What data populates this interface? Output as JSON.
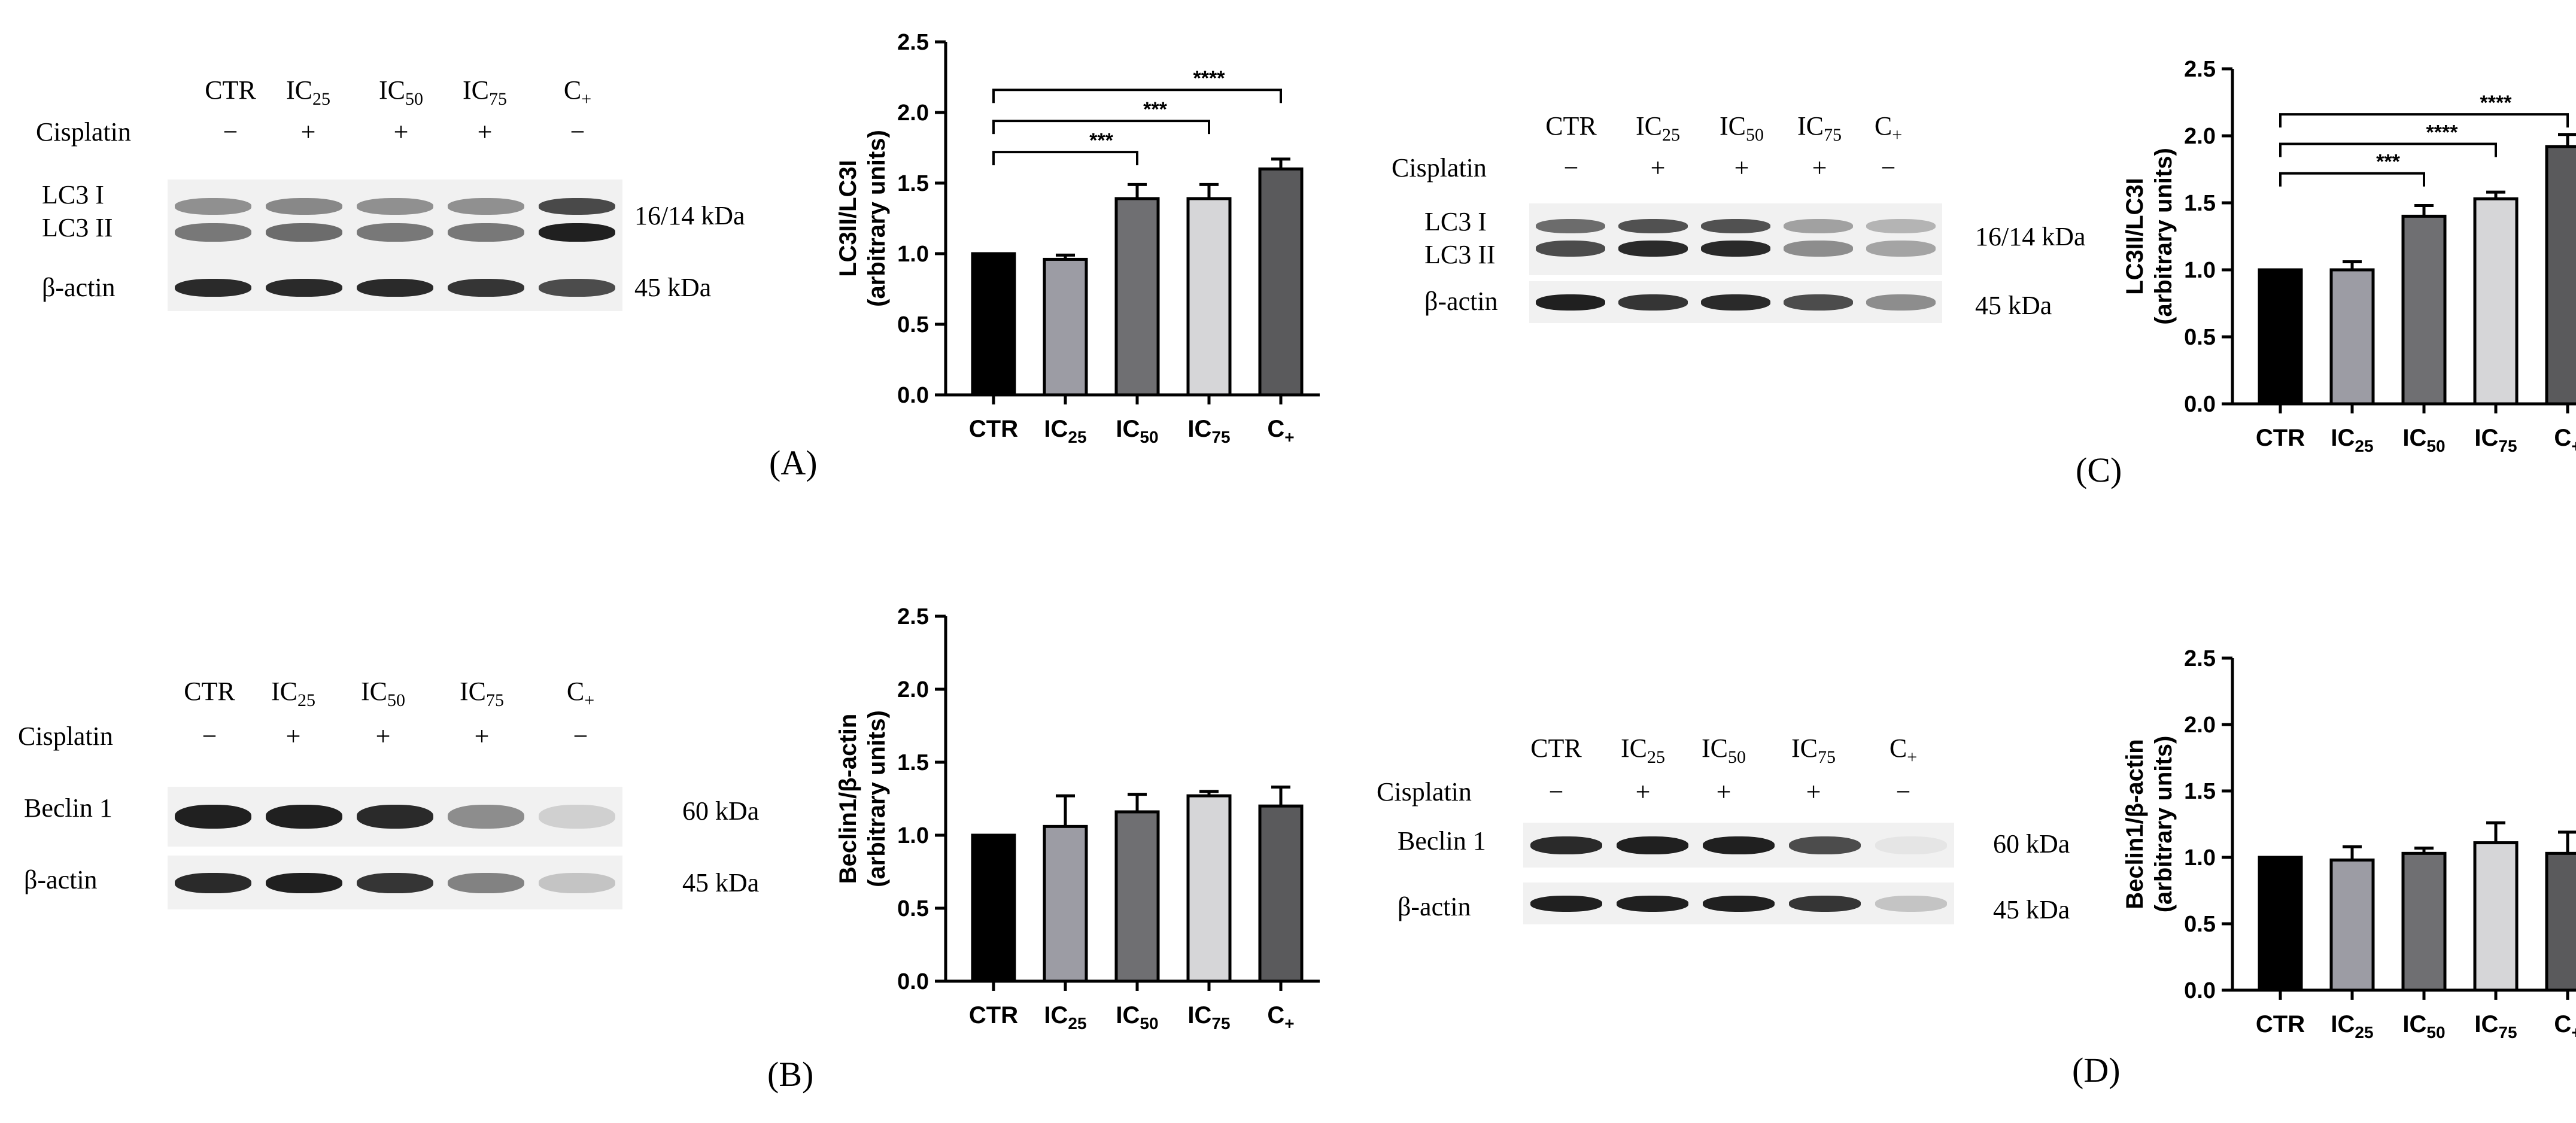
{
  "lanes": [
    "CTR",
    "IC25",
    "IC50",
    "IC75",
    "C+"
  ],
  "lane_labels": [
    {
      "main": "CTR",
      "sub": ""
    },
    {
      "main": "IC",
      "sub": "25"
    },
    {
      "main": "IC",
      "sub": "50"
    },
    {
      "main": "IC",
      "sub": "75"
    },
    {
      "main": "C",
      "sub": "+"
    }
  ],
  "treatment_label": "Cisplatin",
  "treatment_signs": [
    "−",
    "+",
    "+",
    "+",
    "−"
  ],
  "panels": {
    "A": {
      "letter": "(A)",
      "bands": {
        "top": "LC3 I",
        "bottom": "LC3 II",
        "loading": "β-actin"
      },
      "kda": {
        "target": "16/14 kDa",
        "loading": "45 kDa"
      },
      "intensity_target": [
        0.55,
        0.6,
        0.55,
        0.55,
        0.95
      ],
      "intensity_loading": [
        0.9,
        0.9,
        0.9,
        0.85,
        0.75
      ]
    },
    "B": {
      "letter": "(B)",
      "bands": {
        "top": "Beclin 1",
        "loading": "β-actin"
      },
      "kda": {
        "target": "60 kDa",
        "loading": "45 kDa"
      },
      "intensity_target": [
        0.95,
        0.95,
        0.9,
        0.45,
        0.15
      ],
      "intensity_loading": [
        0.9,
        0.95,
        0.85,
        0.5,
        0.2
      ]
    },
    "C": {
      "letter": "(C)",
      "bands": {
        "top": "LC3 I",
        "bottom": "LC3 II",
        "loading": "β-actin"
      },
      "kda": {
        "target": "16/14 kDa",
        "loading": "45 kDa"
      },
      "intensity_target": [
        0.75,
        0.9,
        0.9,
        0.45,
        0.35
      ],
      "intensity_loading": [
        0.95,
        0.85,
        0.9,
        0.75,
        0.45
      ]
    },
    "D": {
      "letter": "(D)",
      "bands": {
        "top": "Beclin 1",
        "loading": "β-actin"
      },
      "kda": {
        "target": "60 kDa",
        "loading": "45 kDa"
      },
      "intensity_target": [
        0.9,
        0.95,
        0.95,
        0.75,
        0.05
      ],
      "intensity_loading": [
        0.95,
        0.95,
        0.95,
        0.85,
        0.2
      ]
    }
  },
  "chart_data": [
    {
      "panel": "A",
      "type": "bar",
      "categories": [
        "CTR",
        "IC25",
        "IC50",
        "IC75",
        "C+"
      ],
      "values": [
        1.0,
        0.96,
        1.39,
        1.39,
        1.6
      ],
      "errors": [
        0.0,
        0.03,
        0.1,
        0.1,
        0.07
      ],
      "ylabel_line1": "LC3II/LC3I",
      "ylabel_line2": "(arbitrary units)",
      "ylim": [
        0,
        2.5
      ],
      "yticks": [
        "0.0",
        "0.5",
        "1.0",
        "1.5",
        "2.0",
        "2.5"
      ],
      "significance": [
        {
          "from": "CTR",
          "to": "IC50",
          "label": "***"
        },
        {
          "from": "CTR",
          "to": "IC75",
          "label": "***"
        },
        {
          "from": "CTR",
          "to": "C+",
          "label": "****"
        }
      ],
      "colors": [
        "#000000",
        "#9c9ca4",
        "#6f6f72",
        "#d6d6d8",
        "#5a5a5c"
      ]
    },
    {
      "panel": "B",
      "type": "bar",
      "categories": [
        "CTR",
        "IC25",
        "IC50",
        "IC75",
        "C+"
      ],
      "values": [
        1.0,
        1.06,
        1.16,
        1.27,
        1.2
      ],
      "errors": [
        0.0,
        0.21,
        0.12,
        0.03,
        0.13
      ],
      "ylabel_line1": "Beclin1/β-actin",
      "ylabel_line2": "(arbitrary units)",
      "ylim": [
        0,
        2.5
      ],
      "yticks": [
        "0.0",
        "0.5",
        "1.0",
        "1.5",
        "2.0",
        "2.5"
      ],
      "significance": [],
      "colors": [
        "#000000",
        "#9c9ca4",
        "#6f6f72",
        "#d6d6d8",
        "#5a5a5c"
      ]
    },
    {
      "panel": "C",
      "type": "bar",
      "categories": [
        "CTR",
        "IC25",
        "IC50",
        "IC75",
        "C+"
      ],
      "values": [
        1.0,
        1.0,
        1.4,
        1.53,
        1.92
      ],
      "errors": [
        0.0,
        0.06,
        0.08,
        0.05,
        0.09
      ],
      "ylabel_line1": "LC3II/LC3I",
      "ylabel_line2": "(arbitrary units)",
      "ylim": [
        0,
        2.5
      ],
      "yticks": [
        "0.0",
        "0.5",
        "1.0",
        "1.5",
        "2.0",
        "2.5"
      ],
      "significance": [
        {
          "from": "CTR",
          "to": "IC50",
          "label": "***"
        },
        {
          "from": "CTR",
          "to": "IC75",
          "label": "****"
        },
        {
          "from": "CTR",
          "to": "C+",
          "label": "****"
        }
      ],
      "colors": [
        "#000000",
        "#9c9ca4",
        "#6f6f72",
        "#d6d6d8",
        "#5a5a5c"
      ]
    },
    {
      "panel": "D",
      "type": "bar",
      "categories": [
        "CTR",
        "IC25",
        "IC50",
        "IC75",
        "C+"
      ],
      "values": [
        1.0,
        0.98,
        1.03,
        1.11,
        1.03
      ],
      "errors": [
        0.0,
        0.1,
        0.04,
        0.15,
        0.16
      ],
      "ylabel_line1": "Beclin1/β-actin",
      "ylabel_line2": "(arbitrary units)",
      "ylim": [
        0,
        2.5
      ],
      "yticks": [
        "0.0",
        "0.5",
        "1.0",
        "1.5",
        "2.0",
        "2.5"
      ],
      "significance": [],
      "colors": [
        "#000000",
        "#9c9ca4",
        "#6f6f72",
        "#d6d6d8",
        "#5a5a5c"
      ]
    }
  ]
}
